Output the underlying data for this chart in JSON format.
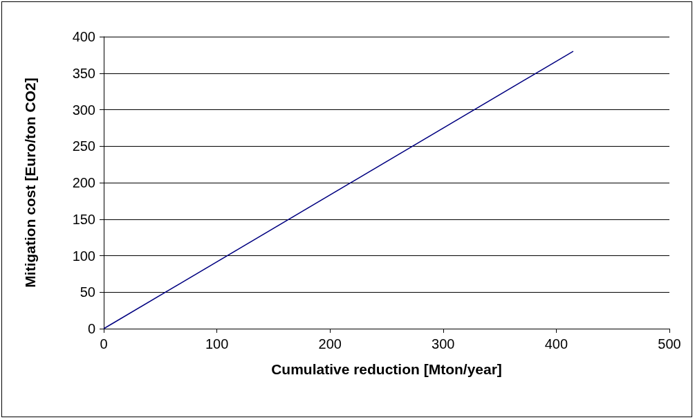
{
  "chart_data": {
    "type": "line",
    "xlabel": "Cumulative reduction [Mton/year]",
    "ylabel": "Mitigation cost [Euro/ton CO2]",
    "x": [
      0,
      415
    ],
    "series": [
      {
        "color": "#000080",
        "values": [
          0,
          380
        ]
      }
    ],
    "xlim": [
      0,
      500
    ],
    "xticks": [
      0,
      100,
      200,
      300,
      400,
      500
    ],
    "ylim": [
      0,
      400
    ],
    "yticks": [
      0,
      50,
      100,
      150,
      200,
      250,
      300,
      350,
      400
    ],
    "grid": "y",
    "marker": "none",
    "line_style": "solid"
  }
}
